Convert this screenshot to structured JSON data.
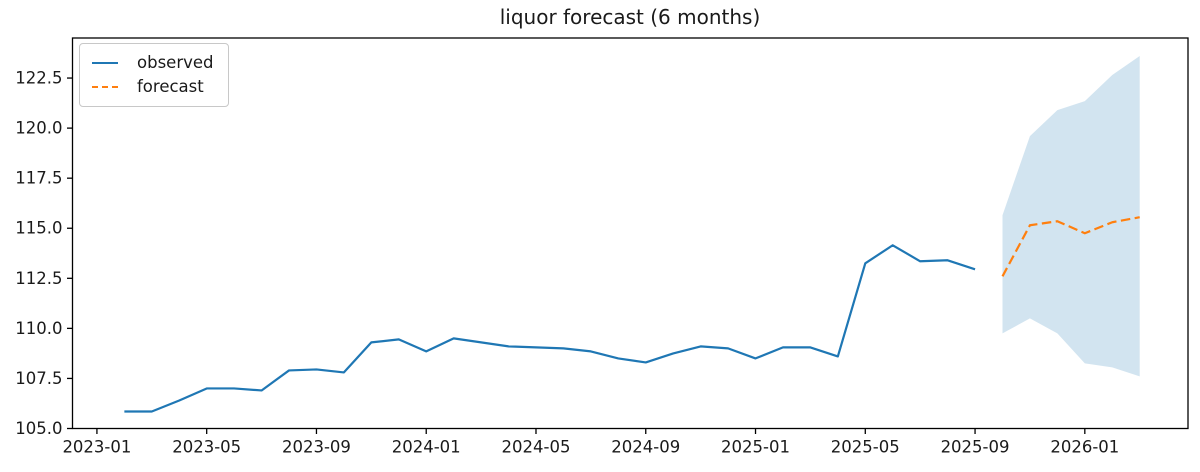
{
  "figure": {
    "title": "liquor forecast (6 months)"
  },
  "legend": {
    "observed_label": "observed",
    "forecast_label": "forecast"
  },
  "chart_data": {
    "type": "line",
    "title": "liquor forecast (6 months)",
    "xlabel": "",
    "ylabel": "",
    "grid": false,
    "legend_position": "upper-left",
    "colors": {
      "observed": "#1f77b4",
      "forecast": "#ff7f0e",
      "confidence_band": "#1f77b4",
      "spine": "#000000",
      "text": "#1a1a1a"
    },
    "x_tick_labels": [
      "2023-01",
      "2023-05",
      "2023-09",
      "2024-01",
      "2024-05",
      "2024-09",
      "2025-01",
      "2025-05",
      "2025-09",
      "2026-01"
    ],
    "y_tick_labels": [
      "105.0",
      "107.5",
      "110.0",
      "112.5",
      "115.0",
      "117.5",
      "120.0",
      "122.5"
    ],
    "x_range_months_since_2023_01": [
      -0.89,
      39.76
    ],
    "y_range": [
      105.0,
      124.5
    ],
    "series": [
      {
        "name": "observed",
        "line_style": "solid",
        "points": [
          [
            "2023-02",
            105.85
          ],
          [
            "2023-03",
            105.85
          ],
          [
            "2023-04",
            106.4
          ],
          [
            "2023-05",
            107.0
          ],
          [
            "2023-06",
            107.0
          ],
          [
            "2023-07",
            106.9
          ],
          [
            "2023-08",
            107.9
          ],
          [
            "2023-09",
            107.95
          ],
          [
            "2023-10",
            107.8
          ],
          [
            "2023-11",
            109.3
          ],
          [
            "2023-12",
            109.45
          ],
          [
            "2024-01",
            108.85
          ],
          [
            "2024-02",
            109.5
          ],
          [
            "2024-03",
            109.3
          ],
          [
            "2024-04",
            109.1
          ],
          [
            "2024-05",
            109.05
          ],
          [
            "2024-06",
            109.0
          ],
          [
            "2024-07",
            108.85
          ],
          [
            "2024-08",
            108.5
          ],
          [
            "2024-09",
            108.3
          ],
          [
            "2024-10",
            108.75
          ],
          [
            "2024-11",
            109.1
          ],
          [
            "2024-12",
            109.0
          ],
          [
            "2025-01",
            108.5
          ],
          [
            "2025-02",
            109.05
          ],
          [
            "2025-03",
            109.05
          ],
          [
            "2025-04",
            108.6
          ],
          [
            "2025-05",
            113.25
          ],
          [
            "2025-06",
            114.15
          ],
          [
            "2025-07",
            113.35
          ],
          [
            "2025-08",
            113.4
          ],
          [
            "2025-09",
            112.95
          ]
        ]
      },
      {
        "name": "forecast",
        "line_style": "dashed",
        "points": [
          [
            "2025-10",
            112.6
          ],
          [
            "2025-11",
            115.15
          ],
          [
            "2025-12",
            115.35
          ],
          [
            "2026-01",
            114.75
          ],
          [
            "2026-02",
            115.3
          ],
          [
            "2026-03",
            115.55
          ]
        ]
      }
    ],
    "confidence_interval": {
      "fill_opacity": 0.2,
      "points_lower_upper": [
        [
          "2025-10",
          109.75,
          115.65
        ],
        [
          "2025-11",
          110.5,
          119.6
        ],
        [
          "2025-12",
          109.75,
          120.9
        ],
        [
          "2026-01",
          108.25,
          121.35
        ],
        [
          "2026-02",
          108.05,
          122.65
        ],
        [
          "2026-03",
          107.6,
          123.6
        ]
      ]
    }
  }
}
